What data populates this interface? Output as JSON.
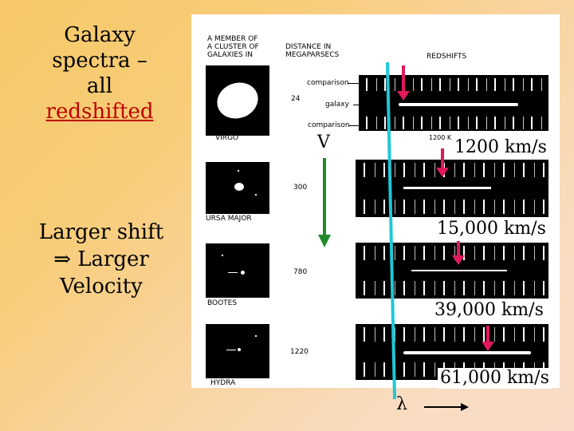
{
  "title": {
    "line1": "Galaxy",
    "line2": "spectra –",
    "line3": "all",
    "line4": "redshifted"
  },
  "note": {
    "line1": "Larger shift",
    "line2": "⇒ Larger",
    "line3": "Velocity"
  },
  "panel": {
    "headers": {
      "member": [
        "A MEMBER OF",
        "A CLUSTER OF",
        "GALAXIES IN"
      ],
      "distance": [
        "DISTANCE IN",
        "MEGAPARSECS"
      ],
      "redshifts": "REDSHIFTS"
    },
    "spectrum_labels": {
      "comparison_top": "comparison",
      "galaxy": "galaxy",
      "comparison_bottom": "comparison"
    },
    "galaxies": [
      {
        "name": "VIRGO",
        "distance": "24",
        "redshift_label": "1200 km/s"
      },
      {
        "name": "URSA MAJOR",
        "distance": "300",
        "redshift_label": "15,000 km/s"
      },
      {
        "name": "BOOTES",
        "distance": "780",
        "redshift_label": "39,000 km/s"
      },
      {
        "name": "HYDRA",
        "distance": "1220",
        "redshift_label": "61,000 km/s"
      }
    ],
    "virgo_small_label": "1200 K"
  },
  "symbols": {
    "velocity": "V",
    "wavelength": "λ"
  },
  "colors": {
    "arrow_red": "#e0185c",
    "line_cyan": "#1ec8d8",
    "arrow_green": "#1f8a2a",
    "title_red": "#c00000"
  }
}
